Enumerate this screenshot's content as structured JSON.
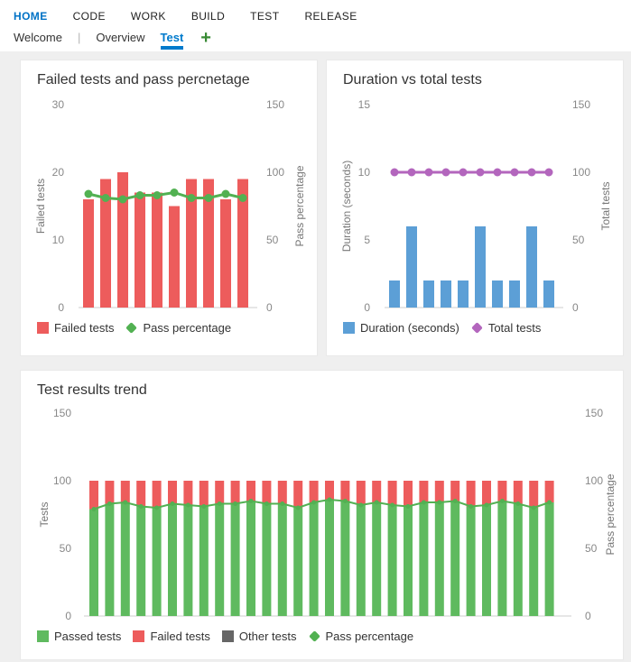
{
  "top_nav": {
    "items": [
      {
        "label": "HOME",
        "active": true
      },
      {
        "label": "CODE"
      },
      {
        "label": "WORK"
      },
      {
        "label": "BUILD"
      },
      {
        "label": "TEST"
      },
      {
        "label": "RELEASE"
      }
    ]
  },
  "tab_nav": {
    "tabs": [
      {
        "label": "Welcome"
      },
      {
        "label": "Overview"
      },
      {
        "label": "Test",
        "active": true
      }
    ],
    "separator": "|",
    "add_label": "+"
  },
  "colors": {
    "nav_active_blue": "#0072c6",
    "tab_active_blue": "#007acc",
    "add_green": "#388a34",
    "failed_red": "#ed5c5c",
    "passed_green": "#5fba5f",
    "line_green": "#52b152",
    "duration_blue": "#5c9fd6",
    "total_purple": "#b366bd",
    "other_gray": "#666666",
    "axis_gray": "#888888",
    "dashboard_bg": "#efefef"
  },
  "chart_data": [
    {
      "type": "bar",
      "title": "Failed tests and pass percnetage",
      "left_axis": {
        "label": "Failed tests",
        "range": [
          0,
          30
        ],
        "ticks": [
          0,
          10,
          20,
          30
        ]
      },
      "right_axis": {
        "label": "Pass percentage",
        "range": [
          0,
          150
        ],
        "ticks": [
          0,
          50,
          100,
          150
        ]
      },
      "series": [
        {
          "name": "Failed tests",
          "kind": "bar",
          "axis": "left",
          "color": "#ed5c5c",
          "values": [
            16,
            19,
            20,
            17,
            17,
            15,
            19,
            19,
            16,
            19
          ]
        },
        {
          "name": "Pass percentage",
          "kind": "line",
          "axis": "right",
          "color": "#52b152",
          "values": [
            84,
            81,
            80,
            83,
            83,
            85,
            81,
            81,
            84,
            81
          ]
        }
      ],
      "legend": [
        {
          "label": "Failed tests",
          "shape": "square",
          "color": "#ed5c5c"
        },
        {
          "label": "Pass percentage",
          "shape": "diamond",
          "color": "#52b152"
        }
      ]
    },
    {
      "type": "bar",
      "title": "Duration vs total tests",
      "left_axis": {
        "label": "Duration (seconds)",
        "range": [
          0,
          15
        ],
        "ticks": [
          0,
          5,
          10,
          15
        ]
      },
      "right_axis": {
        "label": "Total tests",
        "range": [
          0,
          150
        ],
        "ticks": [
          0,
          50,
          100,
          150
        ]
      },
      "series": [
        {
          "name": "Duration (seconds)",
          "kind": "bar",
          "axis": "left",
          "color": "#5c9fd6",
          "values": [
            2,
            6,
            2,
            2,
            2,
            6,
            2,
            2,
            6,
            2
          ]
        },
        {
          "name": "Total tests",
          "kind": "line",
          "axis": "right",
          "color": "#b366bd",
          "values": [
            100,
            100,
            100,
            100,
            100,
            100,
            100,
            100,
            100,
            100
          ]
        }
      ],
      "legend": [
        {
          "label": "Duration (seconds)",
          "shape": "square",
          "color": "#5c9fd6"
        },
        {
          "label": "Total tests",
          "shape": "diamond",
          "color": "#b366bd"
        }
      ]
    },
    {
      "type": "bar",
      "title": "Test results trend",
      "left_axis": {
        "label": "Tests",
        "range": [
          0,
          150
        ],
        "ticks": [
          0,
          50,
          100,
          150
        ]
      },
      "right_axis": {
        "label": "Pass percentage",
        "range": [
          0,
          150
        ],
        "ticks": [
          0,
          50,
          100,
          150
        ]
      },
      "series": [
        {
          "name": "Passed tests",
          "kind": "bar",
          "axis": "left",
          "color": "#5fba5f",
          "values": [
            79,
            83,
            84,
            81,
            80,
            83,
            82,
            81,
            83,
            83,
            85,
            83,
            83,
            80,
            84,
            86,
            85,
            82,
            84,
            82,
            81,
            84,
            84,
            85,
            81,
            82,
            85,
            83,
            80,
            84
          ]
        },
        {
          "name": "Failed tests",
          "kind": "bar",
          "axis": "left",
          "color": "#ed5c5c",
          "values": [
            21,
            17,
            16,
            19,
            20,
            17,
            18,
            19,
            17,
            17,
            15,
            17,
            17,
            20,
            16,
            14,
            15,
            18,
            16,
            18,
            19,
            16,
            16,
            15,
            19,
            18,
            15,
            17,
            20,
            16
          ]
        },
        {
          "name": "Other tests",
          "kind": "bar",
          "axis": "left",
          "color": "#666666",
          "values": [
            0,
            0,
            0,
            0,
            0,
            0,
            0,
            0,
            0,
            0,
            0,
            0,
            0,
            0,
            0,
            0,
            0,
            0,
            0,
            0,
            0,
            0,
            0,
            0,
            0,
            0,
            0,
            0,
            0,
            0
          ]
        },
        {
          "name": "Pass percentage",
          "kind": "line",
          "axis": "right",
          "color": "#52b152",
          "values": [
            79,
            83,
            84,
            81,
            80,
            83,
            82,
            81,
            83,
            83,
            85,
            83,
            83,
            80,
            84,
            86,
            85,
            82,
            84,
            82,
            81,
            84,
            84,
            85,
            81,
            82,
            85,
            83,
            80,
            84
          ]
        }
      ],
      "legend": [
        {
          "label": "Passed tests",
          "shape": "square",
          "color": "#5fba5f"
        },
        {
          "label": "Failed tests",
          "shape": "square",
          "color": "#ed5c5c"
        },
        {
          "label": "Other tests",
          "shape": "square",
          "color": "#666666"
        },
        {
          "label": "Pass percentage",
          "shape": "diamond",
          "color": "#52b152"
        }
      ]
    }
  ]
}
